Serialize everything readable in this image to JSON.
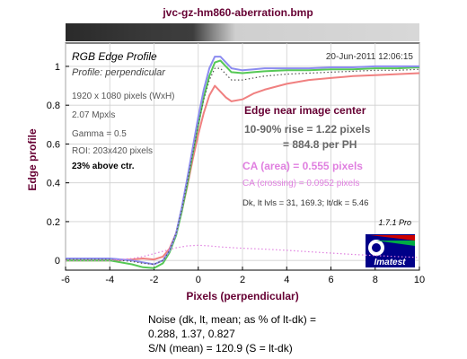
{
  "header": {
    "filename": "jvc-gz-hm860-aberration.bmp"
  },
  "panel": {
    "title": "RGB Edge Profile",
    "subtitle": "Profile: perpendicular",
    "timestamp": "20-Jun-2011 12:06:15",
    "info_lines": [
      "1920 x 1080 pixels (WxH)",
      "2.07 Mpxls",
      "Gamma = 0.5",
      "ROI: 203x420 pixels"
    ],
    "position_note": "23% above ctr.",
    "location": "Edge near image center",
    "rise_line1": "10-90% rise = 1.22 pixels",
    "rise_line2": "= 884.8 per PH",
    "ca_area": "CA (area) = 0.555 pixels",
    "ca_crossing": "CA (crossing) = 0.0952 pixels",
    "levels": "Dk, lt lvls = 31, 169.3;  lt/dk = 5.46",
    "version": "1.7.1  Pro",
    "logo_text": "Imatest"
  },
  "footer": {
    "noise_label": "Noise (dk, lt, mean; as % of lt-dk) =",
    "noise_values": "0.288,  1.37,  0.827",
    "snr": "S/N (mean) = 120.9  (S = lt-dk)"
  },
  "colors": {
    "title": "#660033",
    "red": "#f08080",
    "green": "#55c855",
    "blue": "#8c8cf0",
    "ca": "#e080e0",
    "rise": "#666666",
    "plot_bg": "#ffffff",
    "fig_bg": "#ffffff"
  },
  "chart_data": {
    "type": "line",
    "xlabel": "Pixels (perpendicular)",
    "ylabel": "Edge profile",
    "xlim": [
      -6,
      10
    ],
    "ylim": [
      -0.05,
      1.12
    ],
    "xticks": [
      -6,
      -4,
      -2,
      0,
      2,
      4,
      6,
      8,
      10
    ],
    "yticks": [
      0,
      0.2,
      0.4,
      0.6,
      0.8,
      1
    ],
    "grid": true,
    "series": [
      {
        "color": "red",
        "style": "solid",
        "x": [
          -6,
          -5,
          -4,
          -3,
          -2.5,
          -2,
          -1.6,
          -1.3,
          -1,
          -0.75,
          -0.5,
          -0.25,
          0,
          0.25,
          0.5,
          0.75,
          1,
          1.25,
          1.5,
          2,
          2.5,
          3,
          4,
          5,
          6,
          7,
          8,
          9,
          10
        ],
        "y": [
          0,
          0,
          0,
          0.005,
          0.01,
          0.005,
          0.02,
          0.06,
          0.14,
          0.25,
          0.38,
          0.52,
          0.65,
          0.76,
          0.85,
          0.9,
          0.87,
          0.84,
          0.82,
          0.83,
          0.86,
          0.88,
          0.91,
          0.93,
          0.94,
          0.95,
          0.955,
          0.96,
          0.965
        ]
      },
      {
        "color": "green",
        "style": "solid",
        "x": [
          -6,
          -5,
          -4,
          -3,
          -2.5,
          -2,
          -1.6,
          -1.3,
          -1,
          -0.75,
          -0.5,
          -0.25,
          0,
          0.25,
          0.5,
          0.75,
          1,
          1.25,
          1.5,
          2,
          2.5,
          3,
          4,
          5,
          6,
          7,
          8,
          9,
          10
        ],
        "y": [
          0,
          0,
          0,
          -0.02,
          -0.035,
          -0.04,
          -0.015,
          0.04,
          0.13,
          0.25,
          0.39,
          0.55,
          0.7,
          0.84,
          0.95,
          1.02,
          1.03,
          1.0,
          0.97,
          0.965,
          0.97,
          0.975,
          0.98,
          0.98,
          0.985,
          0.985,
          0.99,
          0.99,
          0.995
        ]
      },
      {
        "color": "blue",
        "style": "solid",
        "x": [
          -6,
          -5,
          -4,
          -3,
          -2.5,
          -2,
          -1.6,
          -1.3,
          -1,
          -0.75,
          -0.5,
          -0.25,
          0,
          0.25,
          0.5,
          0.75,
          1,
          1.25,
          1.5,
          2,
          2.5,
          3,
          4,
          5,
          6,
          7,
          8,
          9,
          10
        ],
        "y": [
          0.01,
          0.01,
          0.01,
          0.0,
          -0.01,
          -0.02,
          0.0,
          0.05,
          0.14,
          0.27,
          0.42,
          0.58,
          0.74,
          0.88,
          0.99,
          1.05,
          1.05,
          1.02,
          0.99,
          0.98,
          0.985,
          0.99,
          0.99,
          0.99,
          0.995,
          0.995,
          1.0,
          1.0,
          1.0
        ]
      },
      {
        "color": "black",
        "style": "dotted",
        "x": [
          -6,
          -5,
          -4,
          -3,
          -2.5,
          -2,
          -1.6,
          -1.3,
          -1,
          -0.75,
          -0.5,
          -0.25,
          0,
          0.25,
          0.5,
          0.75,
          1,
          1.25,
          1.5,
          2,
          2.5,
          3,
          4,
          5,
          6,
          7,
          8,
          9,
          10
        ],
        "y": [
          0.005,
          0.005,
          0.005,
          -0.005,
          -0.015,
          -0.02,
          0.0,
          0.05,
          0.14,
          0.26,
          0.4,
          0.55,
          0.7,
          0.83,
          0.93,
          0.99,
          0.99,
          0.96,
          0.93,
          0.93,
          0.94,
          0.95,
          0.96,
          0.965,
          0.97,
          0.975,
          0.98,
          0.98,
          0.985
        ]
      },
      {
        "color": "ca",
        "style": "dotted",
        "x": [
          -6,
          -4,
          -3,
          -2.5,
          -2,
          -1.5,
          -1,
          -0.5,
          0,
          0.5,
          1,
          1.5,
          2,
          3,
          4,
          5,
          6,
          7,
          8,
          9,
          10
        ],
        "y": [
          0.0,
          0.0,
          0.01,
          0.02,
          0.035,
          0.05,
          0.065,
          0.075,
          0.078,
          0.075,
          0.07,
          0.066,
          0.063,
          0.058,
          0.052,
          0.045,
          0.038,
          0.031,
          0.025,
          0.02,
          0.015
        ]
      }
    ]
  }
}
